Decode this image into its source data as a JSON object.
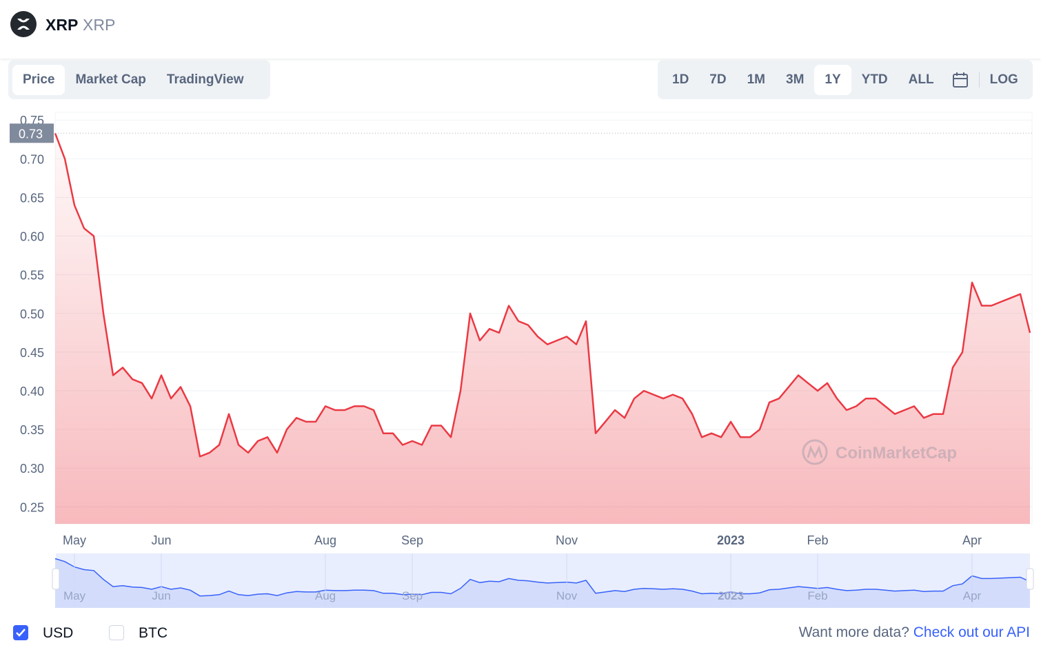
{
  "header": {
    "name": "XRP",
    "symbol": "XRP"
  },
  "tabs": [
    "Price",
    "Market Cap",
    "TradingView"
  ],
  "ranges": [
    "1D",
    "7D",
    "1M",
    "3M",
    "1Y",
    "YTD",
    "ALL"
  ],
  "log_button": "LOG",
  "chart_data": {
    "type": "area",
    "color": "#ea3943",
    "categories": [
      null,
      null,
      "May",
      null,
      null,
      null,
      null,
      null,
      null,
      null,
      null,
      "Jun",
      null,
      null,
      null,
      null,
      null,
      null,
      null,
      null,
      null,
      null,
      null,
      null,
      null,
      null,
      null,
      null,
      "Aug",
      null,
      null,
      null,
      null,
      null,
      null,
      null,
      null,
      "Sep",
      null,
      null,
      null,
      null,
      null,
      null,
      null,
      null,
      null,
      null,
      null,
      null,
      null,
      null,
      null,
      "Nov",
      null,
      null,
      null,
      null,
      null,
      null,
      null,
      null,
      null,
      null,
      null,
      null,
      null,
      null,
      null,
      null,
      "2023",
      null,
      null,
      null,
      null,
      null,
      null,
      null,
      null,
      "Feb",
      null,
      null,
      null,
      null,
      null,
      null,
      null,
      null,
      null,
      null,
      null,
      null,
      null,
      null,
      null,
      "Apr",
      null,
      null,
      null,
      null,
      null,
      null
    ],
    "values": [
      0.733,
      0.7,
      0.64,
      0.61,
      0.6,
      0.5,
      0.42,
      0.43,
      0.415,
      0.41,
      0.39,
      0.42,
      0.39,
      0.405,
      0.38,
      0.315,
      0.32,
      0.33,
      0.37,
      0.33,
      0.32,
      0.335,
      0.34,
      0.32,
      0.35,
      0.365,
      0.36,
      0.36,
      0.38,
      0.375,
      0.375,
      0.38,
      0.38,
      0.375,
      0.345,
      0.345,
      0.33,
      0.335,
      0.33,
      0.355,
      0.355,
      0.34,
      0.4,
      0.5,
      0.465,
      0.48,
      0.475,
      0.51,
      0.49,
      0.485,
      0.47,
      0.46,
      0.465,
      0.47,
      0.46,
      0.49,
      0.345,
      0.36,
      0.375,
      0.365,
      0.39,
      0.4,
      0.395,
      0.39,
      0.395,
      0.39,
      0.37,
      0.34,
      0.345,
      0.34,
      0.36,
      0.34,
      0.34,
      0.35,
      0.385,
      0.39,
      0.405,
      0.42,
      0.41,
      0.4,
      0.41,
      0.39,
      0.375,
      0.38,
      0.39,
      0.39,
      0.38,
      0.37,
      0.375,
      0.38,
      0.365,
      0.37,
      0.37,
      0.43,
      0.45,
      0.54,
      0.51,
      0.51,
      0.515,
      0.52,
      0.525,
      0.475
    ],
    "ylim": [
      0.228,
      0.76
    ],
    "yticks": [
      0.25,
      {
        "value": 0.3,
        "label": "0.30"
      },
      0.35,
      {
        "value": 0.4,
        "label": "0.40"
      },
      0.45,
      {
        "value": 0.5,
        "label": "0.50"
      },
      0.55,
      {
        "value": 0.6,
        "label": "0.60"
      },
      0.65,
      {
        "value": 0.7,
        "label": "0.70"
      },
      0.75
    ],
    "grid": true,
    "reference_line": {
      "value": 0.733,
      "label": "0.73"
    },
    "watermark": "CoinMarketCap"
  },
  "footer": {
    "currencies": [
      "USD",
      "BTC"
    ],
    "prompt": "Want more data?",
    "link": "Check out our API"
  }
}
